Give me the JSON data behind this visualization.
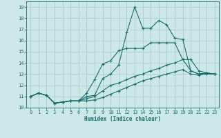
{
  "xlabel": "Humidex (Indice chaleur)",
  "bg_color": "#cce8e8",
  "grid_color": "#aacccc",
  "line_color": "#1a6b6b",
  "xlim": [
    -0.5,
    23.5
  ],
  "ylim": [
    10.0,
    19.5
  ],
  "xticks": [
    0,
    1,
    2,
    3,
    4,
    5,
    6,
    7,
    8,
    9,
    10,
    11,
    12,
    13,
    14,
    15,
    16,
    17,
    18,
    19,
    20,
    21,
    22,
    23
  ],
  "yticks": [
    10,
    11,
    12,
    13,
    14,
    15,
    16,
    17,
    18,
    19
  ],
  "line1_y": [
    11.0,
    11.3,
    11.1,
    10.4,
    10.5,
    10.6,
    10.6,
    11.0,
    11.1,
    12.6,
    13.0,
    13.8,
    16.7,
    19.0,
    17.1,
    17.1,
    17.8,
    17.4,
    16.2,
    16.1,
    13.3,
    13.0,
    13.1,
    13.0
  ],
  "line2_y": [
    11.0,
    11.3,
    11.1,
    10.4,
    10.5,
    10.6,
    10.6,
    11.3,
    12.5,
    13.9,
    14.2,
    15.1,
    15.3,
    15.3,
    15.3,
    15.8,
    15.8,
    15.8,
    15.8,
    14.3,
    14.3,
    13.3,
    13.1,
    13.0
  ],
  "line3_y": [
    11.0,
    11.3,
    11.1,
    10.4,
    10.5,
    10.6,
    10.6,
    10.8,
    11.0,
    11.5,
    12.0,
    12.2,
    12.5,
    12.8,
    13.0,
    13.3,
    13.5,
    13.8,
    14.0,
    14.3,
    13.3,
    13.0,
    13.1,
    13.0
  ],
  "line4_y": [
    11.0,
    11.3,
    11.1,
    10.4,
    10.5,
    10.6,
    10.6,
    10.6,
    10.7,
    10.9,
    11.2,
    11.5,
    11.8,
    12.1,
    12.4,
    12.6,
    12.8,
    13.0,
    13.2,
    13.4,
    13.0,
    12.9,
    13.0,
    13.0
  ]
}
